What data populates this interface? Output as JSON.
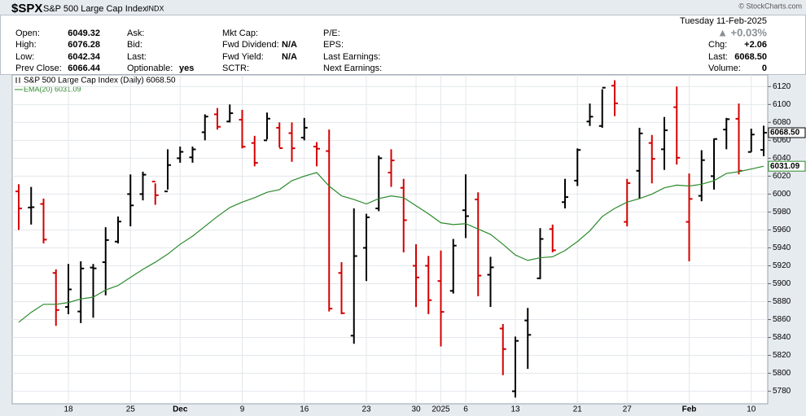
{
  "header": {
    "symbol": "$SPX",
    "name": "S&P 500 Large Cap Index",
    "exchange": "INDX",
    "copyright": "© StockCharts.com",
    "columns": [
      [
        {
          "label": "Open:",
          "value": "6049.32"
        },
        {
          "label": "High:",
          "value": "6076.28"
        },
        {
          "label": "Low:",
          "value": "6042.34"
        },
        {
          "label": "Prev Close:",
          "value": "6066.44"
        }
      ],
      [
        {
          "label": "Ask:"
        },
        {
          "label": "Bid:"
        },
        {
          "label": "Last:"
        },
        {
          "label": "Optionable:",
          "value": "yes"
        }
      ],
      [
        {
          "label": "Mkt Cap:"
        },
        {
          "label": "Fwd Dividend:",
          "value": "N/A"
        },
        {
          "label": "Fwd Yield:",
          "value": "N/A"
        },
        {
          "label": "SCTR:"
        }
      ],
      [
        {
          "label": "P/E:"
        },
        {
          "label": "EPS:"
        },
        {
          "label": "Last Earnings:"
        },
        {
          "label": "Next Earnings:"
        }
      ]
    ],
    "right": {
      "date": "Tuesday  11-Feb-2025",
      "change_pct": "▲ +0.03%",
      "fields": [
        {
          "label": "Chg:",
          "value": "+2.06"
        },
        {
          "label": "Last:",
          "value": "6068.50"
        },
        {
          "label": "Volume:",
          "value": "0"
        }
      ]
    }
  },
  "chart_data": {
    "type": "ohlc",
    "ylim": [
      5766,
      6133
    ],
    "yticks": [
      5780,
      5800,
      5820,
      5840,
      5860,
      5880,
      5900,
      5920,
      5940,
      5960,
      5980,
      6000,
      6020,
      6040,
      6060,
      6080,
      6100,
      6120
    ],
    "grid": true,
    "categories": [
      null,
      null,
      null,
      null,
      "18",
      null,
      null,
      null,
      null,
      "25",
      null,
      null,
      null,
      "Dec",
      null,
      null,
      null,
      null,
      "9",
      null,
      null,
      null,
      null,
      "16",
      null,
      null,
      null,
      null,
      "23",
      null,
      null,
      null,
      "30",
      null,
      "2025",
      null,
      "6",
      null,
      null,
      null,
      "13",
      null,
      null,
      null,
      null,
      "21",
      null,
      null,
      null,
      "27",
      null,
      null,
      null,
      null,
      "Feb",
      null,
      null,
      null,
      null,
      "10",
      null
    ],
    "series": [
      {
        "name": "S&P 500 Large Cap Index (Daily) 6068.50",
        "last_label": "6068.50",
        "open": [
          6003,
          5985,
          5989,
          5912,
          5874,
          5869,
          5918,
          5924,
          5947,
          6000,
          6000,
          6014,
          6003,
          6040,
          6041,
          6069,
          6089,
          6081,
          6083,
          6057,
          6060,
          6074,
          6068,
          6063,
          6053,
          6048,
          5912,
          5842,
          5940,
          5984,
          6024,
          6007,
          5920,
          5920,
          5903,
          5892,
          5982,
          5994,
          5910,
          5850,
          5780,
          5859,
          5906,
          5961,
          5991,
          6015,
          6081,
          6076,
          6121,
          5969,
          6026,
          6057,
          6050,
          6097,
          5969,
          5998,
          6020,
          6072,
          6084,
          6047,
          6049.32
        ],
        "high": [
          6011,
          6008,
          5995,
          5916,
          5922,
          5925,
          5922,
          5963,
          5975,
          6022,
          6025,
          6012,
          6050,
          6053,
          6053,
          6089,
          6096,
          6100,
          6094,
          6065,
          6091,
          6080,
          6080,
          6085,
          6058,
          6072,
          5924,
          5984,
          5978,
          6043,
          6050,
          6017,
          5944,
          5931,
          5937,
          5950,
          6022,
          6002,
          5930,
          5855,
          5841,
          5873,
          5962,
          5966,
          6017,
          6051,
          6101,
          6117,
          6127,
          6017,
          6074,
          6066,
          6086,
          6120,
          6023,
          6049,
          6062,
          6085,
          6101,
          6073,
          6076.28
        ],
        "low": [
          5960,
          5966,
          5945,
          5853,
          5866,
          5856,
          5862,
          5887,
          5945,
          5964,
          5993,
          5988,
          6005,
          6035,
          6035,
          6060,
          6072,
          6080,
          6051,
          6031,
          6061,
          6052,
          6036,
          6060,
          6031,
          5869,
          5866,
          5833,
          5903,
          5981,
          6008,
          5935,
          5874,
          5866,
          5830,
          5889,
          5951,
          5886,
          5874,
          5798,
          5773,
          5805,
          5905,
          5935,
          5984,
          6009,
          6076,
          6074,
          6087,
          5964,
          5995,
          6012,
          6027,
          6033,
          5925,
          5992,
          6005,
          6050,
          6022,
          6047,
          6042.34
        ],
        "close": [
          5983.99,
          5985.38,
          5949.17,
          5870.62,
          5893.62,
          5916.98,
          5917.11,
          5948.71,
          5969.34,
          5987.37,
          6021.63,
          5998.74,
          6032.38,
          6047.15,
          6049.88,
          6086.49,
          6075.11,
          6090.27,
          6052.85,
          6034.91,
          6084.19,
          6051.25,
          6051.09,
          6074.08,
          6050.61,
          5872.16,
          5867.08,
          5930.85,
          5974.07,
          6040.04,
          6037.59,
          5970.84,
          5906.94,
          5881.63,
          5868.55,
          5942.47,
          5975.38,
          5909.03,
          5918.25,
          5827.04,
          5836.22,
          5842.91,
          5949.91,
          5937.34,
          5996.66,
          6049.24,
          6086.37,
          6118.71,
          6101.24,
          6012.28,
          6067.7,
          6039.31,
          6071.17,
          6040.53,
          5994.57,
          6037.88,
          6061.48,
          6083.57,
          6025.99,
          6066.44,
          6068.5
        ],
        "colors": [
          "#d40000",
          "#000000",
          "#d40000",
          "#d40000",
          "#000000",
          "#000000",
          "#000000",
          "#000000",
          "#000000",
          "#000000",
          "#000000",
          "#d40000",
          "#000000",
          "#000000",
          "#000000",
          "#000000",
          "#d40000",
          "#000000",
          "#d40000",
          "#d40000",
          "#000000",
          "#d40000",
          "#d40000",
          "#000000",
          "#d40000",
          "#d40000",
          "#d40000",
          "#000000",
          "#000000",
          "#000000",
          "#d40000",
          "#d40000",
          "#d40000",
          "#d40000",
          "#d40000",
          "#000000",
          "#000000",
          "#d40000",
          "#000000",
          "#d40000",
          "#000000",
          "#000000",
          "#000000",
          "#d40000",
          "#000000",
          "#000000",
          "#000000",
          "#000000",
          "#d40000",
          "#d40000",
          "#000000",
          "#d40000",
          "#000000",
          "#d40000",
          "#d40000",
          "#000000",
          "#000000",
          "#000000",
          "#d40000",
          "#000000",
          "#000000"
        ]
      },
      {
        "name": "EMA(20) 6031.09",
        "last_label": "6031.09",
        "color": "#2b8a2b",
        "values": [
          5857,
          5868,
          5877,
          5877,
          5879,
          5883,
          5885,
          5893,
          5898,
          5907,
          5916,
          5924,
          5933,
          5944,
          5953,
          5964,
          5975,
          5985,
          5991,
          5996,
          6002,
          6005,
          6015,
          6020,
          6024,
          6009,
          5998,
          5994,
          5989,
          5995,
          5998,
          5996,
          5987,
          5978,
          5968,
          5966,
          5967,
          5961,
          5955,
          5944,
          5932,
          5926,
          5929,
          5930,
          5937,
          5947,
          5959,
          5975,
          5984,
          5991,
          5995,
          6000,
          6007,
          6010,
          6009,
          6011,
          6015,
          6023,
          6025,
          6028,
          6031.09
        ]
      }
    ]
  }
}
